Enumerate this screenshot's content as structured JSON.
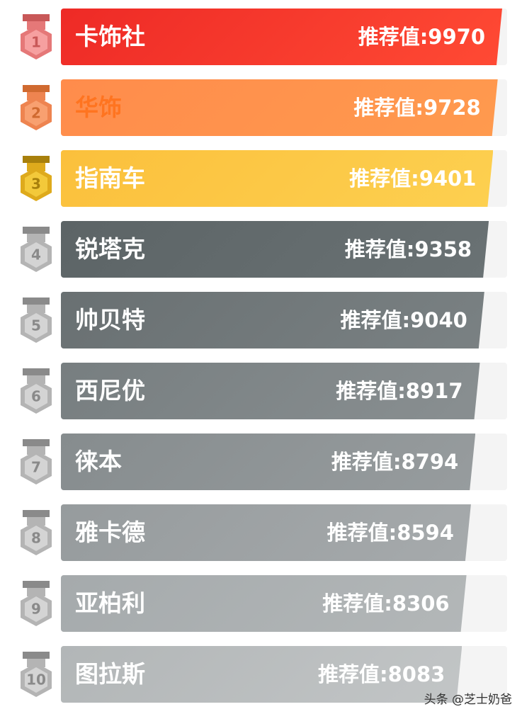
{
  "items": [
    {
      "rank": "1",
      "name": "卡饰社",
      "score": "推荐值:9970"
    },
    {
      "rank": "2",
      "name": "华饰",
      "score": "推荐值:9728"
    },
    {
      "rank": "3",
      "name": "指南车",
      "score": "推荐值:9401"
    },
    {
      "rank": "4",
      "name": "锐塔克",
      "score": "推荐值:9358"
    },
    {
      "rank": "5",
      "name": "帅贝特",
      "score": "推荐值:9040"
    },
    {
      "rank": "6",
      "name": "西尼优",
      "score": "推荐值:8917"
    },
    {
      "rank": "7",
      "name": "徕本",
      "score": "推荐值:8794"
    },
    {
      "rank": "8",
      "name": "雅卡德",
      "score": "推荐值:8594"
    },
    {
      "rank": "9",
      "name": "亚柏利",
      "score": "推荐值:8306"
    },
    {
      "rank": "10",
      "name": "图拉斯",
      "score": "推荐值:8083"
    }
  ],
  "watermark": "头条 @芝士奶爸"
}
